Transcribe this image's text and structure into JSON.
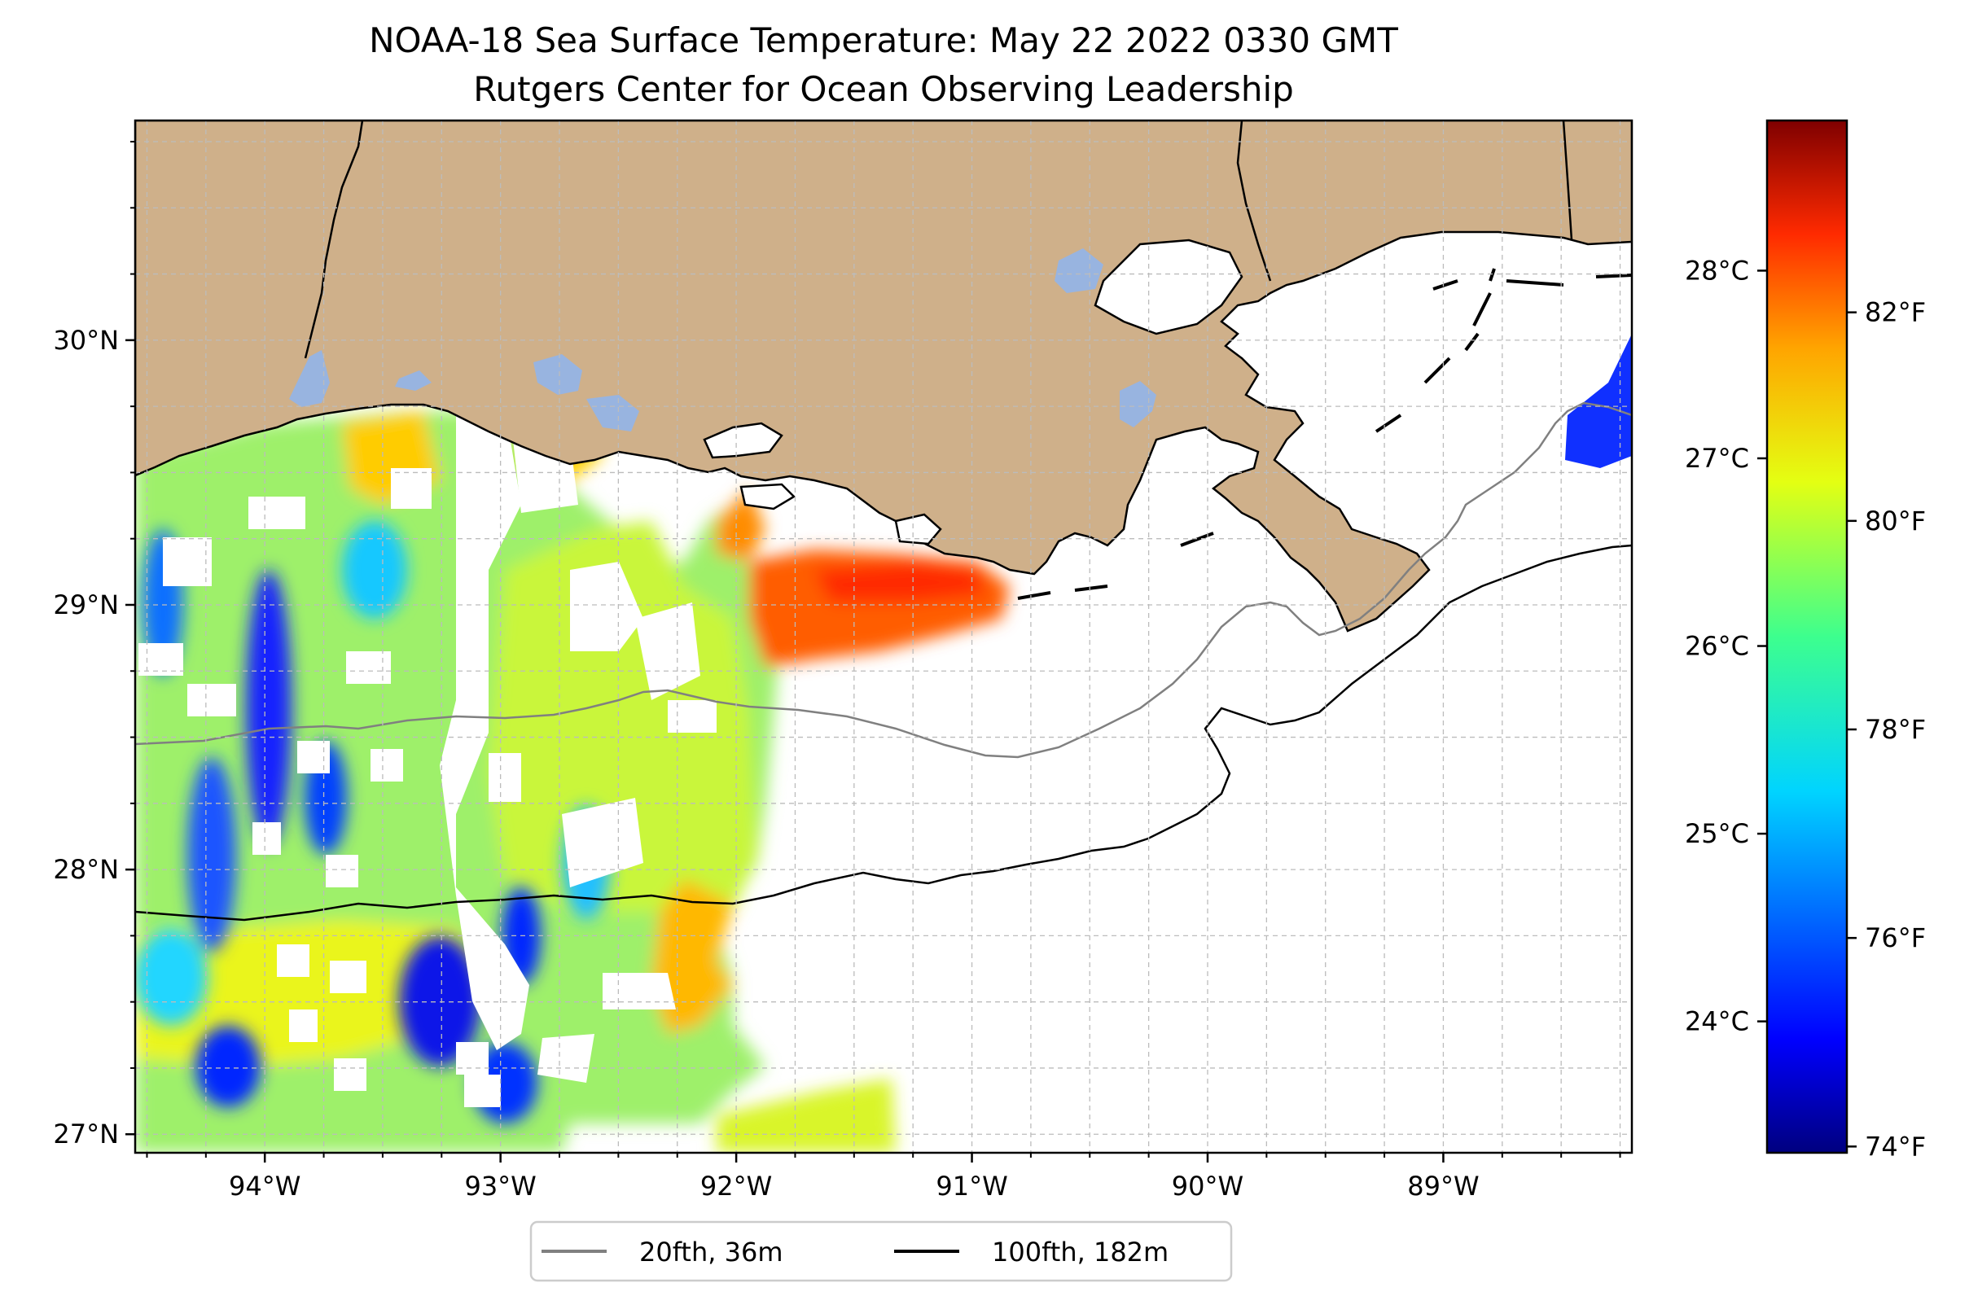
{
  "title": {
    "line1": "NOAA-18 Sea Surface Temperature: May 22 2022 0330 GMT",
    "line2": "Rutgers Center for Ocean Observing Leadership"
  },
  "map": {
    "lon_range": [
      -94.55,
      -88.2
    ],
    "lat_range": [
      26.93,
      30.83
    ],
    "x_ticks": [
      {
        "lon": -94,
        "label": "94°W"
      },
      {
        "lon": -93,
        "label": "93°W"
      },
      {
        "lon": -92,
        "label": "92°W"
      },
      {
        "lon": -91,
        "label": "91°W"
      },
      {
        "lon": -90,
        "label": "90°W"
      },
      {
        "lon": -89,
        "label": "89°W"
      }
    ],
    "y_ticks": [
      {
        "lat": 27,
        "label": "27°N"
      },
      {
        "lat": 28,
        "label": "28°N"
      },
      {
        "lat": 29,
        "label": "29°N"
      },
      {
        "lat": 30,
        "label": "30°N"
      }
    ],
    "grid": true,
    "land_color": "#cfb08a",
    "lake_color": "#98b4e0",
    "ocean_color": "#ffffff"
  },
  "colorbar": {
    "colormap": "jet",
    "celsius_range": [
      23.3,
      28.8
    ],
    "celsius_ticks": [
      {
        "value": 24,
        "label": "24°C"
      },
      {
        "value": 25,
        "label": "25°C"
      },
      {
        "value": 26,
        "label": "26°C"
      },
      {
        "value": 27,
        "label": "27°C"
      },
      {
        "value": 28,
        "label": "28°C"
      }
    ],
    "fahrenheit_ticks": [
      {
        "value": 74,
        "label": "74°F"
      },
      {
        "value": 76,
        "label": "76°F"
      },
      {
        "value": 78,
        "label": "78°F"
      },
      {
        "value": 80,
        "label": "80°F"
      },
      {
        "value": 82,
        "label": "82°F"
      }
    ]
  },
  "legend": {
    "items": [
      {
        "label": "20fth, 36m",
        "color": "#808080"
      },
      {
        "label": "100fth, 182m",
        "color": "#000000"
      }
    ]
  }
}
